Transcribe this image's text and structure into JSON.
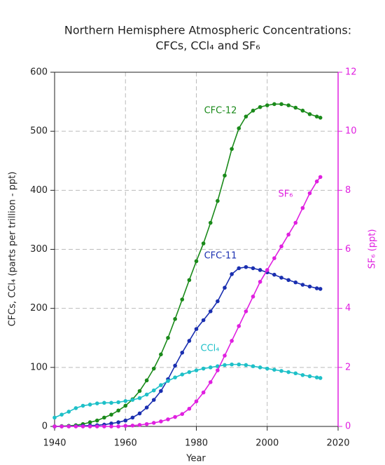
{
  "chart_data": {
    "type": "line",
    "title": "Northern Hemisphere Atmospheric Concentrations:",
    "subtitle": "CFCs, CCl₄ and SF₆",
    "xlabel": "Year",
    "ylabel": "CFCs, CCl₄ (parts per trillion - ppt)",
    "y2label": "SF₆ (ppt)",
    "x": [
      1940,
      1942,
      1944,
      1946,
      1948,
      1950,
      1952,
      1954,
      1956,
      1958,
      1960,
      1962,
      1964,
      1966,
      1968,
      1970,
      1972,
      1974,
      1976,
      1978,
      1980,
      1982,
      1984,
      1986,
      1988,
      1990,
      1992,
      1994,
      1996,
      1998,
      2000,
      2002,
      2004,
      2006,
      2008,
      2010,
      2012,
      2014,
      2015
    ],
    "series": [
      {
        "name": "CFC-12",
        "color": "#1a8a1a",
        "values": [
          0,
          0.5,
          1,
          2,
          4,
          7,
          10,
          15,
          20,
          27,
          35,
          46,
          60,
          78,
          98,
          122,
          150,
          182,
          215,
          248,
          280,
          310,
          345,
          382,
          425,
          470,
          505,
          525,
          535,
          541,
          544,
          546,
          546,
          544,
          540,
          535,
          529,
          525,
          523
        ]
      },
      {
        "name": "CFC-11",
        "color": "#1a2fb0",
        "values": [
          0,
          0,
          0.3,
          0.5,
          1,
          1.5,
          2,
          3,
          5,
          7,
          10,
          15,
          22,
          32,
          45,
          60,
          80,
          103,
          125,
          145,
          165,
          180,
          195,
          212,
          235,
          258,
          268,
          270,
          268,
          265,
          261,
          257,
          252,
          248,
          244,
          240,
          237,
          234,
          233
        ]
      },
      {
        "name": "CCl₄",
        "color": "#1ec0c8",
        "values": [
          15,
          20,
          25,
          31,
          35,
          37,
          39,
          40,
          40,
          41,
          43,
          45,
          48,
          54,
          61,
          70,
          77,
          83,
          88,
          92,
          95,
          98,
          100,
          102,
          104,
          105,
          105,
          104,
          102,
          100,
          98,
          96,
          94,
          92,
          90,
          87,
          85,
          83,
          82
        ]
      },
      {
        "name": "SF₆",
        "color": "#e020e0",
        "axis": "y2",
        "values": [
          0,
          0,
          0,
          0,
          0,
          0,
          0,
          0,
          0,
          0,
          0.02,
          0.03,
          0.05,
          0.08,
          0.12,
          0.17,
          0.24,
          0.32,
          0.42,
          0.6,
          0.85,
          1.15,
          1.5,
          1.9,
          2.4,
          2.9,
          3.4,
          3.9,
          4.4,
          4.9,
          5.3,
          5.7,
          6.1,
          6.5,
          6.9,
          7.4,
          7.9,
          8.3,
          8.45
        ]
      }
    ],
    "xlim": [
      1940,
      2020
    ],
    "xticks": [
      1940,
      1960,
      1980,
      2000,
      2020
    ],
    "ylim": [
      0,
      600
    ],
    "yticks": [
      0,
      100,
      200,
      300,
      400,
      500,
      600
    ],
    "y2lim": [
      0,
      12
    ],
    "y2ticks": [
      0,
      2,
      4,
      6,
      8,
      10,
      12
    ],
    "y2color": "#e020e0",
    "grid": true
  }
}
